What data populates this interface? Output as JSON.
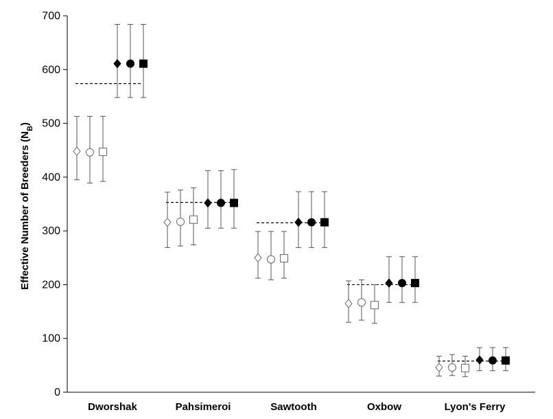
{
  "chart_data": {
    "type": "scatter",
    "ylabel_main": "Effective Number of Breeders (N",
    "ylabel_sub": "B",
    "ylabel_close": ")",
    "ylim": [
      0,
      700
    ],
    "yticks": [
      0,
      100,
      200,
      300,
      400,
      500,
      600,
      700
    ],
    "categories": [
      "Dworshak",
      "Pahsimeroi",
      "Sawtooth",
      "Oxbow",
      "Lyon's Ferry"
    ],
    "grid": false,
    "legend": "none",
    "colors": {
      "marker": "#000000",
      "errorbar": "#555555",
      "reference": "#000000",
      "axis": "#000000"
    },
    "series": [
      {
        "marker": "diamond",
        "filled": false,
        "values": [
          448,
          316,
          250,
          165,
          46
        ],
        "err_low": [
          395,
          269,
          212,
          130,
          30
        ],
        "err_high": [
          513,
          372,
          299,
          207,
          67
        ]
      },
      {
        "marker": "circle",
        "filled": false,
        "values": [
          446,
          317,
          247,
          167,
          46
        ],
        "err_low": [
          389,
          272,
          209,
          134,
          31
        ],
        "err_high": [
          513,
          376,
          299,
          209,
          70
        ]
      },
      {
        "marker": "square",
        "filled": false,
        "values": [
          447,
          321,
          249,
          162,
          45
        ],
        "err_low": [
          392,
          274,
          212,
          128,
          29
        ],
        "err_high": [
          513,
          380,
          299,
          200,
          67
        ]
      },
      {
        "marker": "diamond",
        "filled": true,
        "values": [
          611,
          352,
          316,
          203,
          60
        ],
        "err_low": [
          548,
          305,
          269,
          167,
          40
        ],
        "err_high": [
          684,
          412,
          373,
          252,
          83
        ]
      },
      {
        "marker": "circle",
        "filled": true,
        "values": [
          611,
          352,
          316,
          203,
          59
        ],
        "err_low": [
          548,
          305,
          269,
          167,
          40
        ],
        "err_high": [
          684,
          412,
          373,
          252,
          83
        ]
      },
      {
        "marker": "square",
        "filled": true,
        "values": [
          611,
          352,
          316,
          203,
          59
        ],
        "err_low": [
          548,
          305,
          269,
          167,
          40
        ],
        "err_high": [
          684,
          414,
          373,
          252,
          83
        ]
      }
    ],
    "reference_lines": [
      574,
      353,
      315,
      200,
      58
    ]
  }
}
